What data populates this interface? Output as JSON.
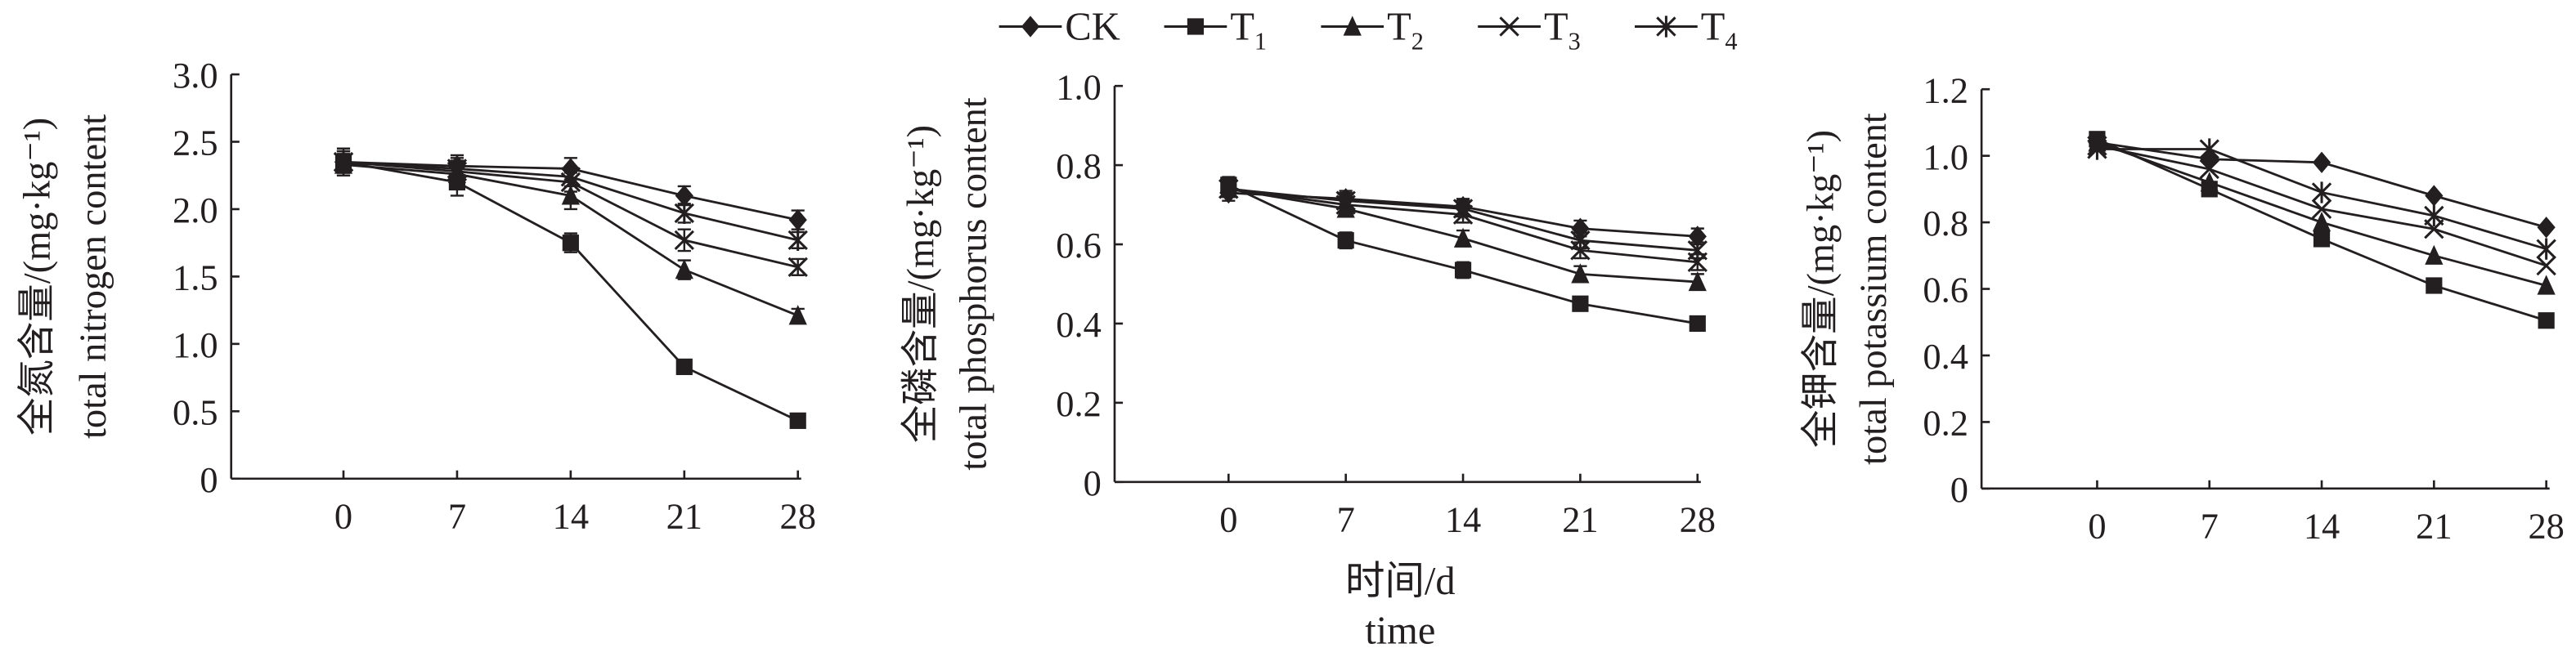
{
  "legend": [
    {
      "name": "CK",
      "sub": "",
      "marker": "diamond"
    },
    {
      "name": "T",
      "sub": "1",
      "marker": "square"
    },
    {
      "name": "T",
      "sub": "2",
      "marker": "triangle"
    },
    {
      "name": "T",
      "sub": "3",
      "marker": "x"
    },
    {
      "name": "T",
      "sub": "4",
      "marker": "asterisk"
    }
  ],
  "xlabel_cn": "时间/d",
  "xlabel_en": "time",
  "colors": {
    "ink": "#231f20"
  },
  "chart_data": [
    {
      "type": "line",
      "ylabel_cn": "全氮含量/(mg·kg⁻¹)",
      "ylabel_en": "total nitrogen content",
      "x": [
        0,
        7,
        14,
        21,
        28
      ],
      "ylim": [
        0,
        3.0
      ],
      "yticks": [
        0,
        0.5,
        1.0,
        1.5,
        2.0,
        2.5,
        3.0
      ],
      "ytick_labels": [
        "0",
        "0.5",
        "1.0",
        "1.5",
        "2.0",
        "2.5",
        "3.0"
      ],
      "series": [
        {
          "name": "CK",
          "values": [
            2.35,
            2.32,
            2.3,
            2.1,
            1.92
          ],
          "err": [
            0.08,
            0.08,
            0.08,
            0.07,
            0.07
          ]
        },
        {
          "name": "T1",
          "values": [
            2.35,
            2.2,
            1.75,
            0.83,
            0.43
          ],
          "err": [
            0.1,
            0.1,
            0.07,
            0.03,
            0.03
          ]
        },
        {
          "name": "T2",
          "values": [
            2.33,
            2.26,
            2.1,
            1.55,
            1.21
          ],
          "err": [
            0.08,
            0.08,
            0.1,
            0.07,
            0.05
          ]
        },
        {
          "name": "T3",
          "values": [
            2.35,
            2.28,
            2.2,
            1.77,
            1.57
          ],
          "err": [
            0.08,
            0.08,
            0.07,
            0.08,
            0.06
          ]
        },
        {
          "name": "T4",
          "values": [
            2.35,
            2.3,
            2.24,
            1.97,
            1.77
          ],
          "err": [
            0.08,
            0.08,
            0.07,
            0.07,
            0.06
          ]
        }
      ]
    },
    {
      "type": "line",
      "ylabel_cn": "全磷含量/(mg·kg⁻¹)",
      "ylabel_en": "total phosphorus  content",
      "x": [
        0,
        7,
        14,
        21,
        28
      ],
      "ylim": [
        0,
        1.0
      ],
      "yticks": [
        0,
        0.2,
        0.4,
        0.6,
        0.8,
        1.0
      ],
      "ytick_labels": [
        "0",
        "0.2",
        "0.4",
        "0.6",
        "0.8",
        "1.0"
      ],
      "series": [
        {
          "name": "CK",
          "values": [
            0.73,
            0.715,
            0.695,
            0.64,
            0.62
          ],
          "err": [
            0.02,
            0.02,
            0.02,
            0.02,
            0.02
          ]
        },
        {
          "name": "T1",
          "values": [
            0.75,
            0.61,
            0.535,
            0.45,
            0.4
          ],
          "err": [
            0.02,
            0.02,
            0.02,
            0.01,
            0.01
          ]
        },
        {
          "name": "T2",
          "values": [
            0.74,
            0.69,
            0.615,
            0.525,
            0.505
          ],
          "err": [
            0.02,
            0.02,
            0.02,
            0.02,
            0.02
          ]
        },
        {
          "name": "T3",
          "values": [
            0.74,
            0.7,
            0.675,
            0.585,
            0.555
          ],
          "err": [
            0.02,
            0.02,
            0.02,
            0.02,
            0.02
          ]
        },
        {
          "name": "T4",
          "values": [
            0.74,
            0.71,
            0.69,
            0.61,
            0.585
          ],
          "err": [
            0.02,
            0.02,
            0.02,
            0.02,
            0.02
          ]
        }
      ]
    },
    {
      "type": "line",
      "ylabel_cn": "全钾含量/(mg·kg⁻¹)",
      "ylabel_en": "total potassium content",
      "x": [
        0,
        7,
        14,
        21,
        28
      ],
      "ylim": [
        0,
        1.2
      ],
      "yticks": [
        0,
        0.2,
        0.4,
        0.6,
        0.8,
        1.0,
        1.2
      ],
      "ytick_labels": [
        "0",
        "0.2",
        "0.4",
        "0.6",
        "0.8",
        "1.0",
        "1.2"
      ],
      "series": [
        {
          "name": "CK",
          "values": [
            1.04,
            0.99,
            0.98,
            0.88,
            0.785
          ],
          "err": [
            0,
            0,
            0,
            0,
            0
          ]
        },
        {
          "name": "T1",
          "values": [
            1.05,
            0.9,
            0.75,
            0.61,
            0.505
          ],
          "err": [
            0,
            0,
            0,
            0,
            0
          ]
        },
        {
          "name": "T2",
          "values": [
            1.04,
            0.92,
            0.8,
            0.7,
            0.61
          ],
          "err": [
            0,
            0,
            0,
            0,
            0
          ]
        },
        {
          "name": "T3",
          "values": [
            1.03,
            0.96,
            0.84,
            0.78,
            0.67
          ],
          "err": [
            0,
            0,
            0,
            0,
            0
          ]
        },
        {
          "name": "T4",
          "values": [
            1.02,
            1.02,
            0.89,
            0.82,
            0.72
          ],
          "err": [
            0,
            0,
            0,
            0,
            0
          ]
        }
      ]
    }
  ]
}
